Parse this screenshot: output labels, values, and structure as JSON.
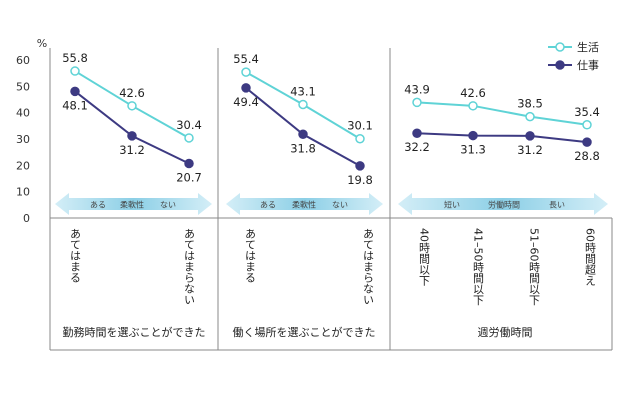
{
  "chart_data": {
    "type": "line",
    "unit_label": "%",
    "ylim": [
      0,
      60
    ],
    "yticks": [
      "0",
      "10",
      "20",
      "30",
      "40",
      "50",
      "60"
    ],
    "legend": {
      "placement": "top-right",
      "items": [
        {
          "name": "生活",
          "color": "#5fd3d6"
        },
        {
          "name": "仕事",
          "color": "#3d3a82"
        }
      ]
    },
    "colors": {
      "arrow_light": "#d4eef7",
      "arrow_dark": "#8ccfe6",
      "series_1": "#5fd3d6",
      "series_2": "#3d3a82"
    },
    "panels": [
      {
        "group_label": "勤務時間を選ぶことができた",
        "categories": [
          "あてはまる",
          "",
          "あてはまらない"
        ],
        "arrow": {
          "left": "ある",
          "mid": "柔軟性",
          "right": "ない"
        },
        "series": [
          {
            "name": "生活",
            "values": [
              55.8,
              42.6,
              30.4
            ],
            "labels": [
              "55.8",
              "42.6",
              "30.4"
            ]
          },
          {
            "name": "仕事",
            "values": [
              48.1,
              31.2,
              20.7
            ],
            "labels": [
              "48.1",
              "31.2",
              "20.7"
            ]
          }
        ]
      },
      {
        "group_label": "働く場所を選ぶことができた",
        "categories": [
          "あてはまる",
          "",
          "あてはまらない"
        ],
        "arrow": {
          "left": "ある",
          "mid": "柔軟性",
          "right": "ない"
        },
        "series": [
          {
            "name": "生活",
            "values": [
              55.4,
              43.1,
              30.1
            ],
            "labels": [
              "55.4",
              "43.1",
              "30.1"
            ]
          },
          {
            "name": "仕事",
            "values": [
              49.4,
              31.8,
              19.8
            ],
            "labels": [
              "49.4",
              "31.8",
              "19.8"
            ]
          }
        ]
      },
      {
        "group_label": "週労働時間",
        "categories": [
          "40時間以下",
          "41–50時間以下",
          "51–60時間以下",
          "60時間超え"
        ],
        "arrow": {
          "left": "短い",
          "mid": "労働時間",
          "right": "長い"
        },
        "series": [
          {
            "name": "生活",
            "values": [
              43.9,
              42.6,
              38.5,
              35.4
            ],
            "labels": [
              "43.9",
              "42.6",
              "38.5",
              "35.4"
            ]
          },
          {
            "name": "仕事",
            "values": [
              32.2,
              31.3,
              31.2,
              28.8
            ],
            "labels": [
              "32.2",
              "31.3",
              "31.2",
              "28.8"
            ]
          }
        ]
      }
    ]
  }
}
